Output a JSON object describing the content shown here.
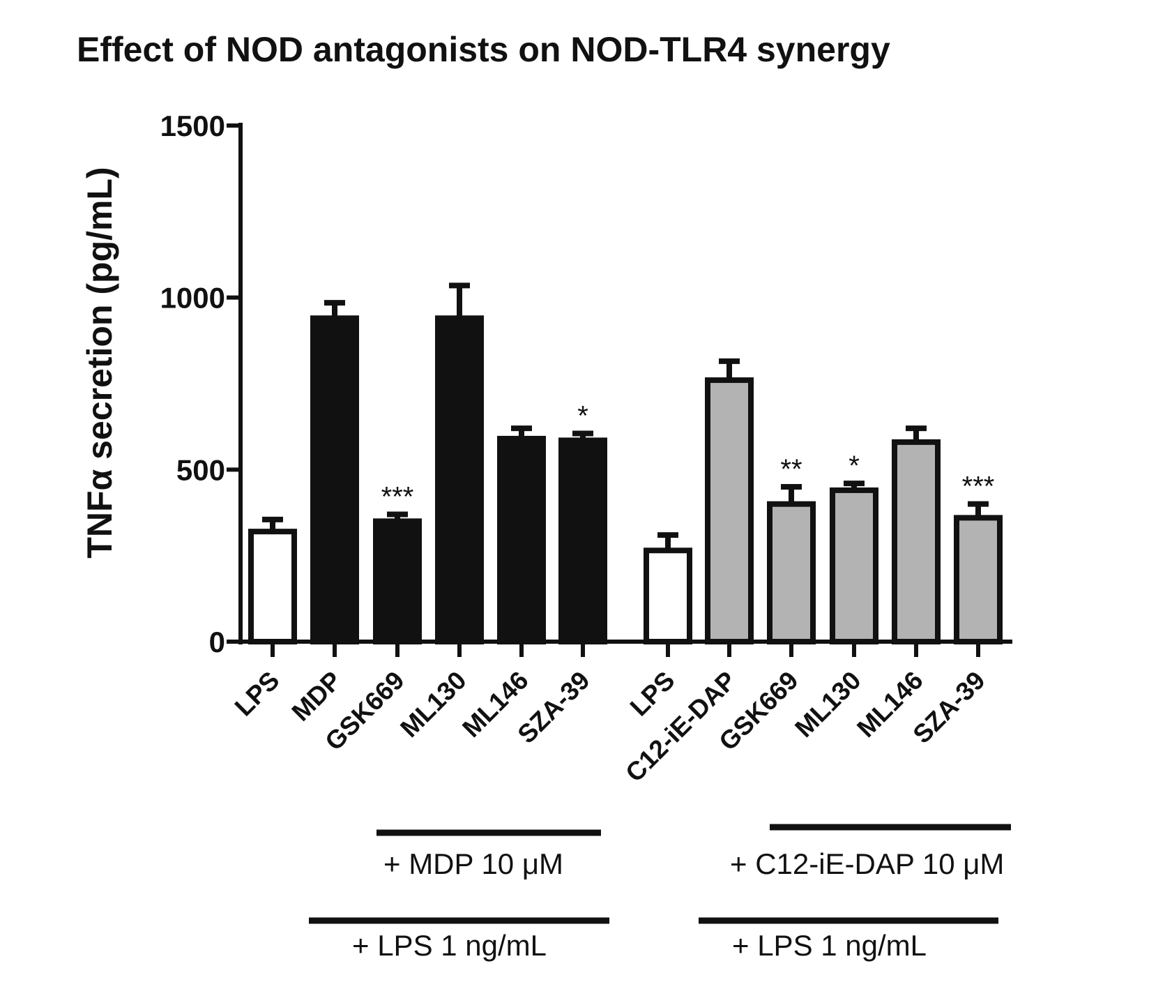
{
  "chart_data": {
    "type": "bar",
    "title": "Effect of NOD antagonists on NOD-TLR4 synergy",
    "ylabel": "TNFα secretion (pg/mL)",
    "ylim": [
      0,
      1500
    ],
    "yticks": [
      "0",
      "500",
      "1000",
      "1500"
    ],
    "categories": [
      "LPS",
      "MDP",
      "GSK669",
      "ML130",
      "ML146",
      "SZA-39",
      "LPS",
      "C12-iE-DAP",
      "GSK669",
      "ML130",
      "ML146",
      "SZA-39"
    ],
    "values": [
      320,
      940,
      350,
      940,
      590,
      585,
      265,
      760,
      400,
      440,
      580,
      360
    ],
    "errors": [
      35,
      45,
      20,
      95,
      30,
      20,
      45,
      55,
      50,
      20,
      40,
      40
    ],
    "fills": [
      "#ffffff",
      "#111111",
      "#111111",
      "#111111",
      "#111111",
      "#111111",
      "#ffffff",
      "#b3b3b3",
      "#b3b3b3",
      "#b3b3b3",
      "#b3b3b3",
      "#b3b3b3"
    ],
    "significance": [
      "",
      "",
      "***",
      "",
      "",
      "*",
      "",
      "",
      "**",
      "*",
      "",
      "***"
    ],
    "group_labels": {
      "mdp": "+ MDP 10 μM",
      "lps_left": "+ LPS 1 ng/mL",
      "dap": "+ C12-iE-DAP 10 μM",
      "lps_right": "+ LPS 1 ng/mL"
    }
  }
}
